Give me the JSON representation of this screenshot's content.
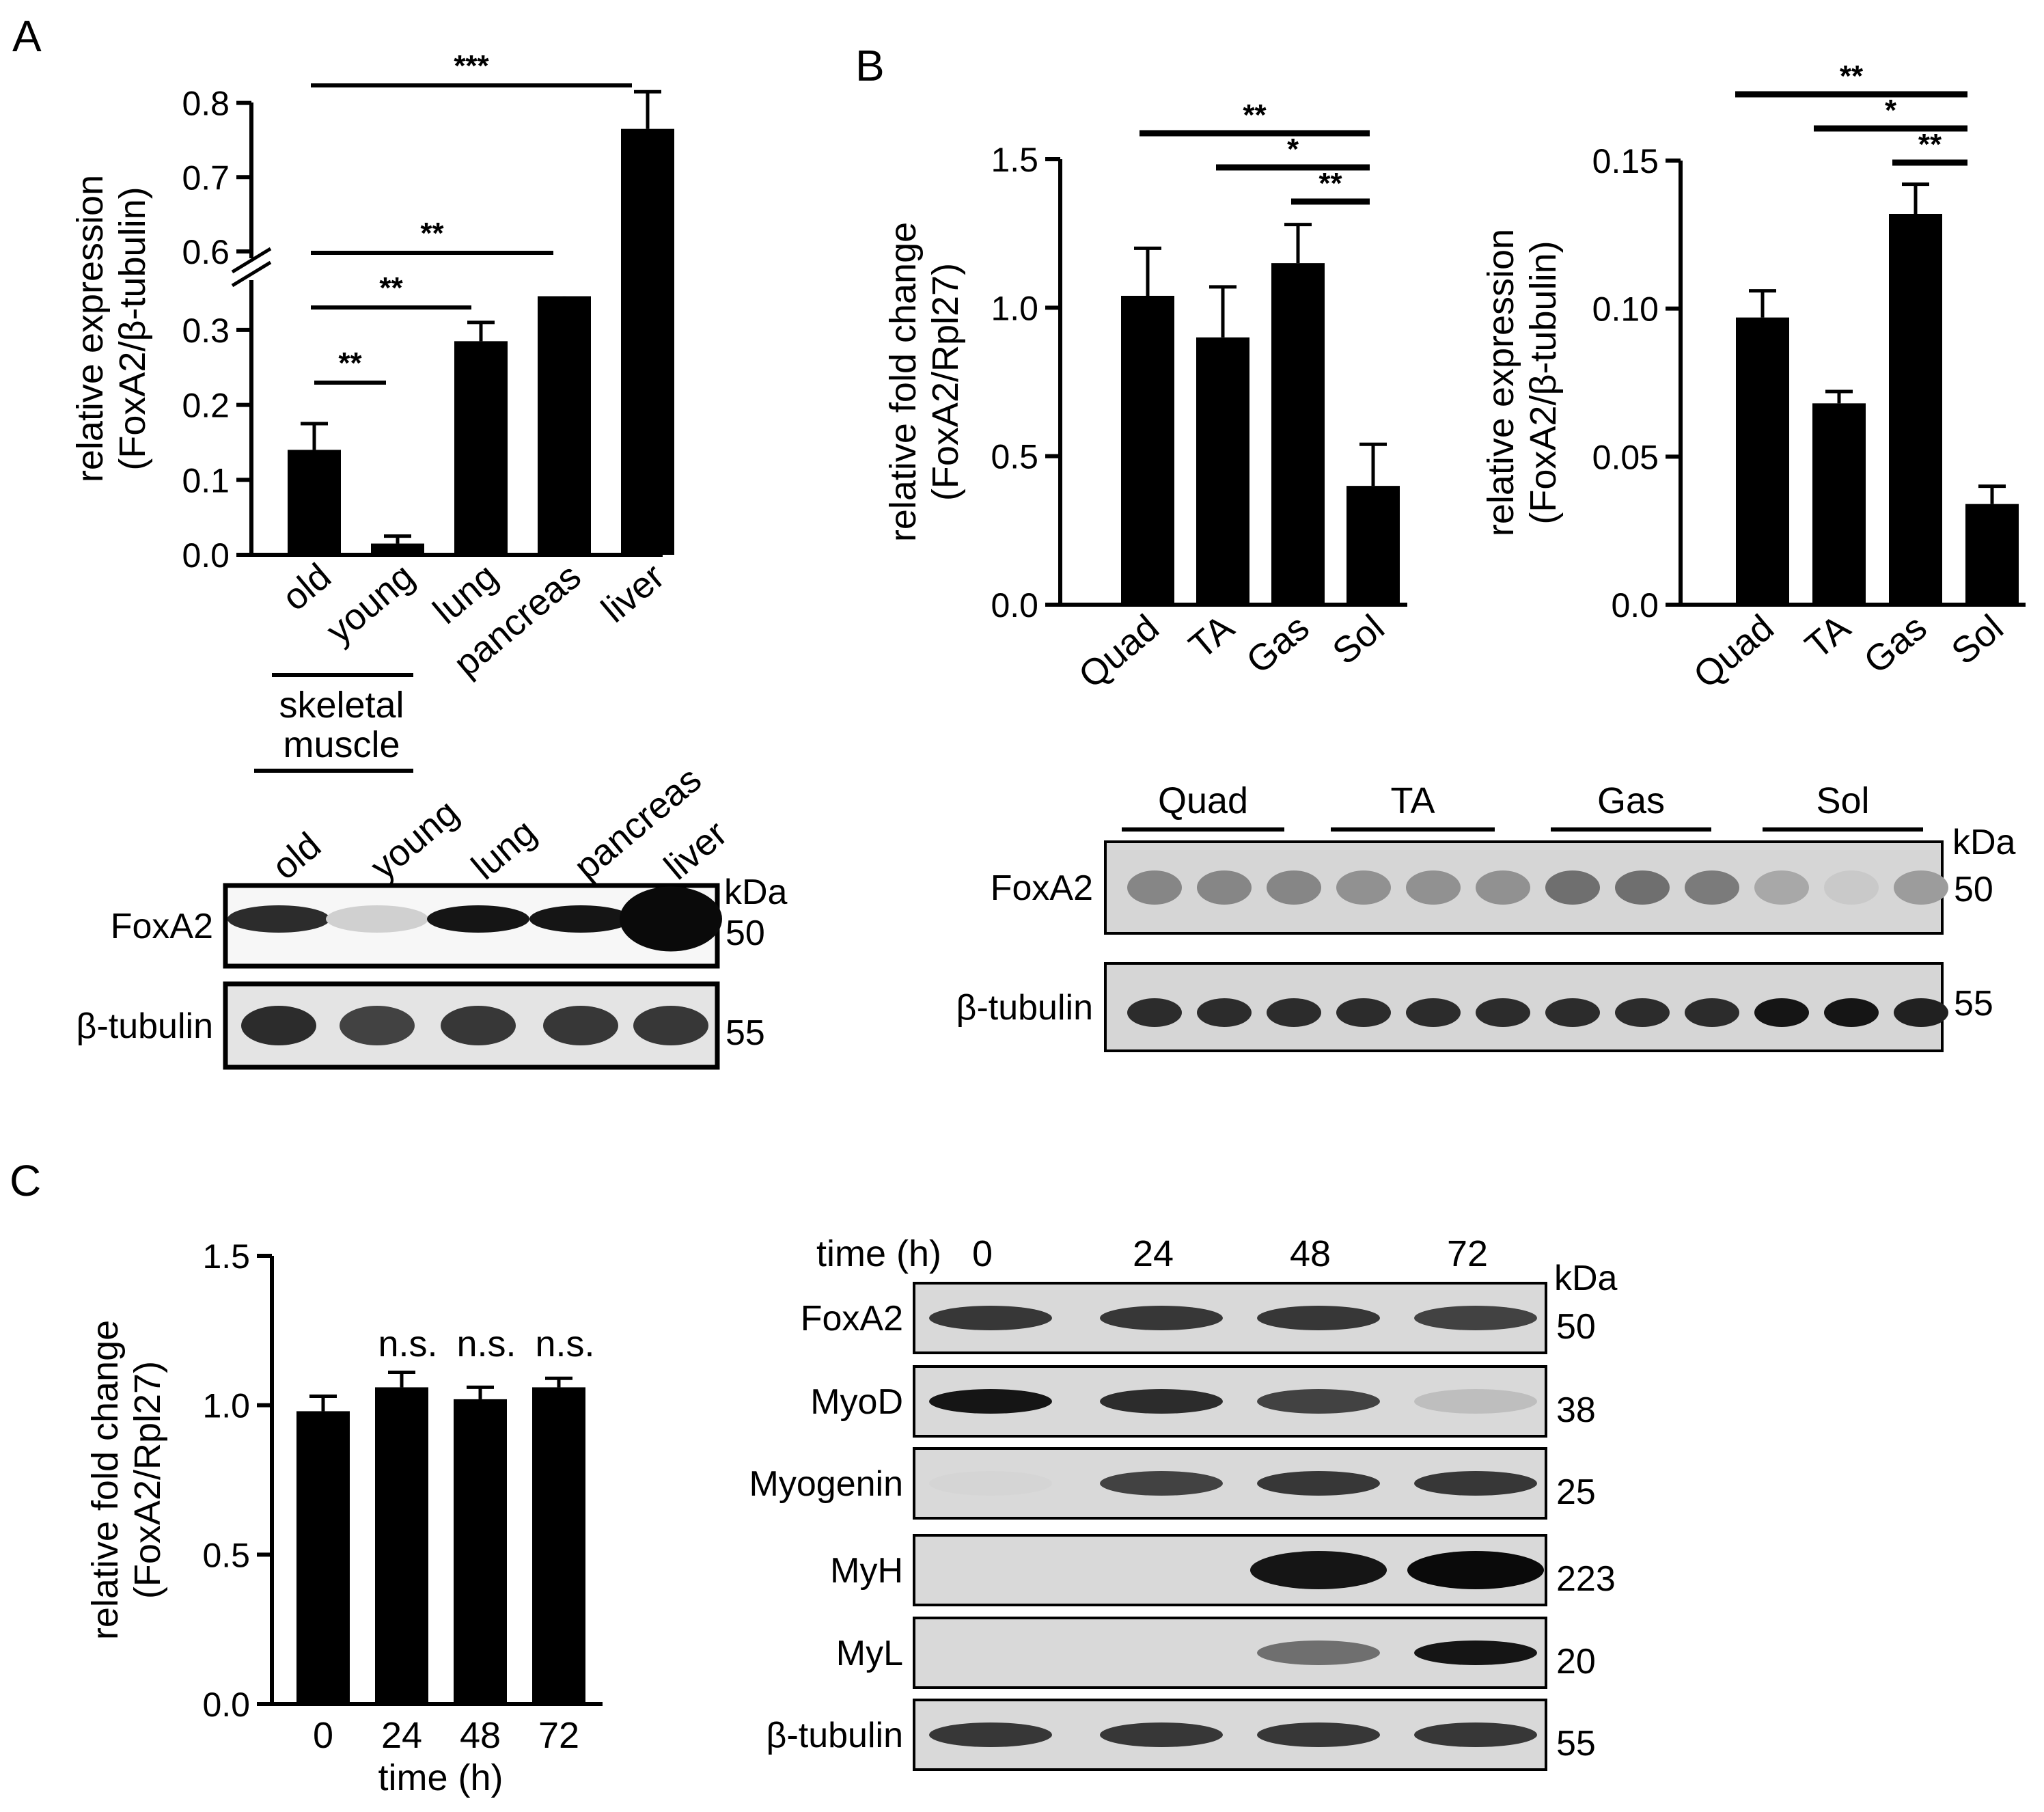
{
  "panels": {
    "A": "A",
    "B": "B",
    "C": "C"
  },
  "chart_data": [
    {
      "panel": "A",
      "type": "bar",
      "ylabel_line1": "relative expression",
      "ylabel_line2": "(FoxA2/β-tubulin)",
      "categories": [
        "old",
        "young",
        "lung",
        "pancreas",
        "liver"
      ],
      "values": [
        0.14,
        0.015,
        0.285,
        0.345,
        0.765
      ],
      "errors": [
        0.035,
        0.01,
        0.025,
        0.018,
        0.05
      ],
      "axis_break": [
        0.35,
        0.6
      ],
      "yticks_lower": [
        "0.0",
        "0.1",
        "0.2",
        "0.3"
      ],
      "yticks_upper": [
        "0.6",
        "0.7",
        "0.8"
      ],
      "group_label_line1": "skeletal",
      "group_label_line2": "muscle",
      "significance": [
        {
          "from": 0,
          "to": 1,
          "label": "**"
        },
        {
          "from": 0,
          "to": 2,
          "label": "**"
        },
        {
          "from": 0,
          "to": 3,
          "label": "**"
        },
        {
          "from": 0,
          "to": 4,
          "label": "***"
        }
      ]
    },
    {
      "panel": "B-left",
      "type": "bar",
      "ylabel_line1": "relative fold change",
      "ylabel_line2": "(FoxA2/Rpl27)",
      "categories": [
        "Quad",
        "TA",
        "Gas",
        "Sol"
      ],
      "values": [
        1.04,
        0.9,
        1.15,
        0.4
      ],
      "errors": [
        0.16,
        0.17,
        0.13,
        0.14
      ],
      "ylim": [
        0,
        1.5
      ],
      "yticks": [
        "0.0",
        "0.5",
        "1.0",
        "1.5"
      ],
      "significance": [
        {
          "from": 0,
          "to": 3,
          "label": "**"
        },
        {
          "from": 1,
          "to": 3,
          "label": "*"
        },
        {
          "from": 2,
          "to": 3,
          "label": "**"
        }
      ]
    },
    {
      "panel": "B-right",
      "type": "bar",
      "ylabel_line1": "relative expression",
      "ylabel_line2": "(FoxA2/β-tubulin)",
      "categories": [
        "Quad",
        "TA",
        "Gas",
        "Sol"
      ],
      "values": [
        0.097,
        0.068,
        0.132,
        0.034
      ],
      "errors": [
        0.009,
        0.004,
        0.01,
        0.006
      ],
      "ylim": [
        0,
        0.15
      ],
      "yticks": [
        "0.0",
        "0.05",
        "0.10",
        "0.15"
      ],
      "significance": [
        {
          "from": 0,
          "to": 3,
          "label": "**"
        },
        {
          "from": 1,
          "to": 3,
          "label": "*"
        },
        {
          "from": 2,
          "to": 3,
          "label": "**"
        }
      ]
    },
    {
      "panel": "C",
      "type": "bar",
      "ylabel_line1": "relative fold change",
      "ylabel_line2": "(FoxA2/Rpl27)",
      "xlabel": "time (h)",
      "categories": [
        "0",
        "24",
        "48",
        "72"
      ],
      "values": [
        0.98,
        1.06,
        1.02,
        1.06
      ],
      "errors": [
        0.05,
        0.05,
        0.04,
        0.03
      ],
      "ylim": [
        0,
        1.5
      ],
      "yticks": [
        "0.0",
        "0.5",
        "1.0",
        "1.5"
      ],
      "annotations": [
        "n.s.",
        "n.s.",
        "n.s."
      ]
    }
  ],
  "blots": {
    "A": {
      "lanes": [
        "old",
        "young",
        "lung",
        "pancreas",
        "liver"
      ],
      "rows": [
        {
          "name": "FoxA2",
          "kda": "50",
          "intensity": [
            0.85,
            0.12,
            0.95,
            0.95,
            1.0
          ]
        },
        {
          "name": "β-tubulin",
          "kda": "55",
          "intensity": [
            0.85,
            0.75,
            0.8,
            0.8,
            0.8
          ]
        }
      ],
      "kda_header": "kDa"
    },
    "B": {
      "groups": [
        "Quad",
        "TA",
        "Gas",
        "Sol"
      ],
      "rows": [
        {
          "name": "FoxA2",
          "kda": "50",
          "intensity": [
            0.45,
            0.45,
            0.45,
            0.4,
            0.4,
            0.4,
            0.55,
            0.55,
            0.5,
            0.3,
            0.15,
            0.35
          ]
        },
        {
          "name": "β-tubulin",
          "kda": "55",
          "intensity": [
            0.85,
            0.85,
            0.85,
            0.85,
            0.85,
            0.85,
            0.85,
            0.85,
            0.85,
            0.95,
            0.95,
            0.9
          ]
        }
      ],
      "kda_header": "kDa"
    },
    "C": {
      "time_label": "time (h)",
      "times": [
        "0",
        "24",
        "48",
        "72"
      ],
      "kda_header": "kDa",
      "rows": [
        {
          "name": "FoxA2",
          "kda": "50",
          "intensity": [
            0.8,
            0.8,
            0.8,
            0.75
          ]
        },
        {
          "name": "MyoD",
          "kda": "38",
          "intensity": [
            0.95,
            0.85,
            0.75,
            0.2
          ]
        },
        {
          "name": "Myogenin",
          "kda": "25",
          "intensity": [
            0.1,
            0.75,
            0.8,
            0.8
          ]
        },
        {
          "name": "MyH",
          "kda": "223",
          "intensity": [
            0.0,
            0.0,
            0.95,
            1.0
          ]
        },
        {
          "name": "MyL",
          "kda": "20",
          "intensity": [
            0.0,
            0.0,
            0.55,
            0.95
          ]
        },
        {
          "name": "β-tubulin",
          "kda": "55",
          "intensity": [
            0.8,
            0.8,
            0.8,
            0.8
          ]
        }
      ]
    }
  }
}
